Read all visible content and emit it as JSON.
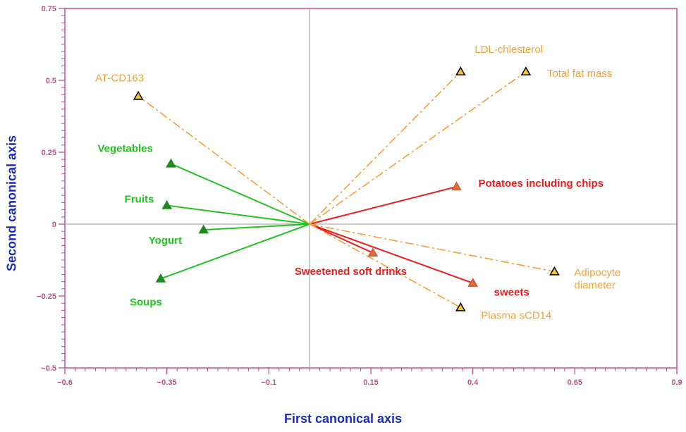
{
  "chart_data": {
    "type": "scatter",
    "xlabel": "First canonical axis",
    "ylabel": "Second canonical axis",
    "xlim": [
      -0.6,
      0.9
    ],
    "ylim": [
      -0.5,
      0.75
    ],
    "xticks": [
      -0.6,
      -0.35,
      -0.1,
      0.15,
      0.4,
      0.65,
      0.9
    ],
    "xtick_labels": [
      "−0.6",
      "−0.35",
      "−0.1",
      "0.15",
      "0.4",
      "0.65",
      "0.9"
    ],
    "yticks": [
      -0.5,
      -0.25,
      0,
      0.25,
      0.5,
      0.75
    ],
    "ytick_labels": [
      "−0.5",
      "−0.25",
      "0",
      "0.25",
      "0.5",
      "0.75"
    ],
    "reference_lines": {
      "x": 0,
      "y": 0
    },
    "grid": false,
    "colors": {
      "food_green": "#22c322",
      "food_red": "#ee1c1c",
      "outcome_orange": "#f2a33a",
      "axis_pink": "#c0508c",
      "axis_title": "#1a2db5"
    },
    "series": [
      {
        "group": "foods_negative",
        "line_style": "solid",
        "color": "#22c322",
        "points": [
          {
            "label": "Vegetables",
            "x": -0.34,
            "y": 0.21
          },
          {
            "label": "Fruits",
            "x": -0.35,
            "y": 0.065
          },
          {
            "label": "Yogurt",
            "x": -0.26,
            "y": -0.02
          },
          {
            "label": "Soups",
            "x": -0.365,
            "y": -0.19
          }
        ]
      },
      {
        "group": "foods_positive",
        "line_style": "solid",
        "color": "#ee1c1c",
        "points": [
          {
            "label": "Potatoes including chips",
            "x": 0.36,
            "y": 0.13
          },
          {
            "label": "Sweetened soft drinks",
            "x": 0.155,
            "y": -0.1
          },
          {
            "label": "sweets",
            "x": 0.4,
            "y": -0.205
          }
        ]
      },
      {
        "group": "outcomes",
        "line_style": "dash-dot",
        "color": "#f2a33a",
        "points": [
          {
            "label": "AT-CD163",
            "x": -0.42,
            "y": 0.445
          },
          {
            "label": "LDL-chlesterol",
            "x": 0.37,
            "y": 0.53
          },
          {
            "label": "Total fat mass",
            "x": 0.53,
            "y": 0.53
          },
          {
            "label": "Adipocyte diameter",
            "x": 0.6,
            "y": -0.165
          },
          {
            "label": "Plasma sCD14",
            "x": 0.37,
            "y": -0.29
          }
        ]
      }
    ]
  }
}
